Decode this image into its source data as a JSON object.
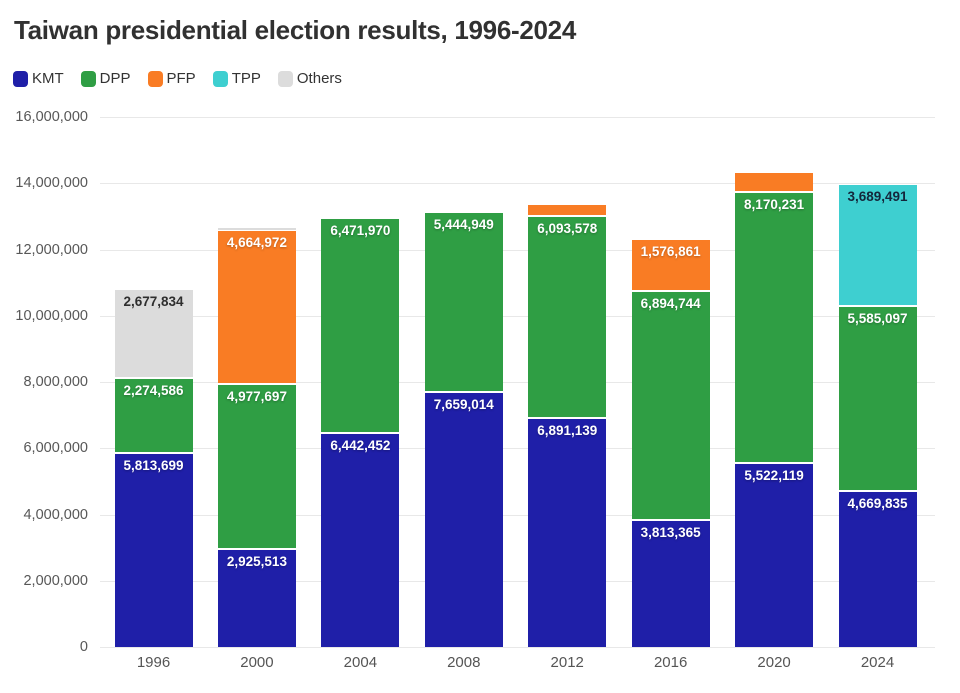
{
  "title": "Taiwan presidential election results, 1996-2024",
  "legend": {
    "items": [
      {
        "label": "KMT",
        "color": "#1f1fa8"
      },
      {
        "label": "DPP",
        "color": "#2f9e44"
      },
      {
        "label": "PFP",
        "color": "#f97c24"
      },
      {
        "label": "TPP",
        "color": "#3ecfd0"
      },
      {
        "label": "Others",
        "color": "#dcdcdc"
      }
    ]
  },
  "chart_data": {
    "type": "bar",
    "stacked": true,
    "title": "Taiwan presidential election results, 1996-2024",
    "xlabel": "",
    "ylabel": "",
    "ylim": [
      0,
      16000000
    ],
    "grid": true,
    "legend_position": "top-left",
    "categories": [
      "1996",
      "2000",
      "2004",
      "2008",
      "2012",
      "2016",
      "2020",
      "2024"
    ],
    "y_ticks": [
      {
        "value": 16000000,
        "label": "16,000,000"
      },
      {
        "value": 14000000,
        "label": "14,000,000"
      },
      {
        "value": 12000000,
        "label": "12,000,000"
      },
      {
        "value": 10000000,
        "label": "10,000,000"
      },
      {
        "value": 8000000,
        "label": "8,000,000"
      },
      {
        "value": 6000000,
        "label": "6,000,000"
      },
      {
        "value": 4000000,
        "label": "4,000,000"
      },
      {
        "value": 2000000,
        "label": "2,000,000"
      },
      {
        "value": 0,
        "label": "0"
      }
    ],
    "series": [
      {
        "name": "KMT",
        "color": "#1f1fa8",
        "label_color": "#ffffff",
        "values": [
          5813699,
          2925513,
          6442452,
          7659014,
          6891139,
          3813365,
          5522119,
          4669835
        ],
        "labels": [
          "5,813,699",
          "2,925,513",
          "6,442,452",
          "7,659,014",
          "6,891,139",
          "3,813,365",
          "5,522,119",
          "4,669,835"
        ]
      },
      {
        "name": "DPP",
        "color": "#2f9e44",
        "label_color": "#ffffff",
        "values": [
          2274586,
          4977697,
          6471970,
          5444949,
          6093578,
          6894744,
          8170231,
          5585097
        ],
        "labels": [
          "2,274,586",
          "4,977,697",
          "6,471,970",
          "5,444,949",
          "6,093,578",
          "6,894,744",
          "8,170,231",
          "5,585,097"
        ]
      },
      {
        "name": "PFP",
        "color": "#f97c24",
        "label_color": "#ffffff",
        "values": [
          0,
          4664972,
          0,
          0,
          370000,
          1576861,
          610000,
          0
        ],
        "labels": [
          "",
          "4,664,972",
          "",
          "",
          "",
          "1,576,861",
          "",
          ""
        ]
      },
      {
        "name": "TPP",
        "color": "#3ecfd0",
        "label_color": "#14263b",
        "values": [
          0,
          0,
          0,
          0,
          0,
          0,
          0,
          3689491
        ],
        "labels": [
          "",
          "",
          "",
          "",
          "",
          "",
          "",
          "3,689,491"
        ]
      },
      {
        "name": "Others",
        "color": "#dcdcdc",
        "label_color": "#2e2e2e",
        "values": [
          2677834,
          96000,
          0,
          0,
          0,
          0,
          0,
          0
        ],
        "labels": [
          "2,677,834",
          "",
          "",
          "",
          "",
          "",
          "",
          ""
        ]
      }
    ]
  }
}
